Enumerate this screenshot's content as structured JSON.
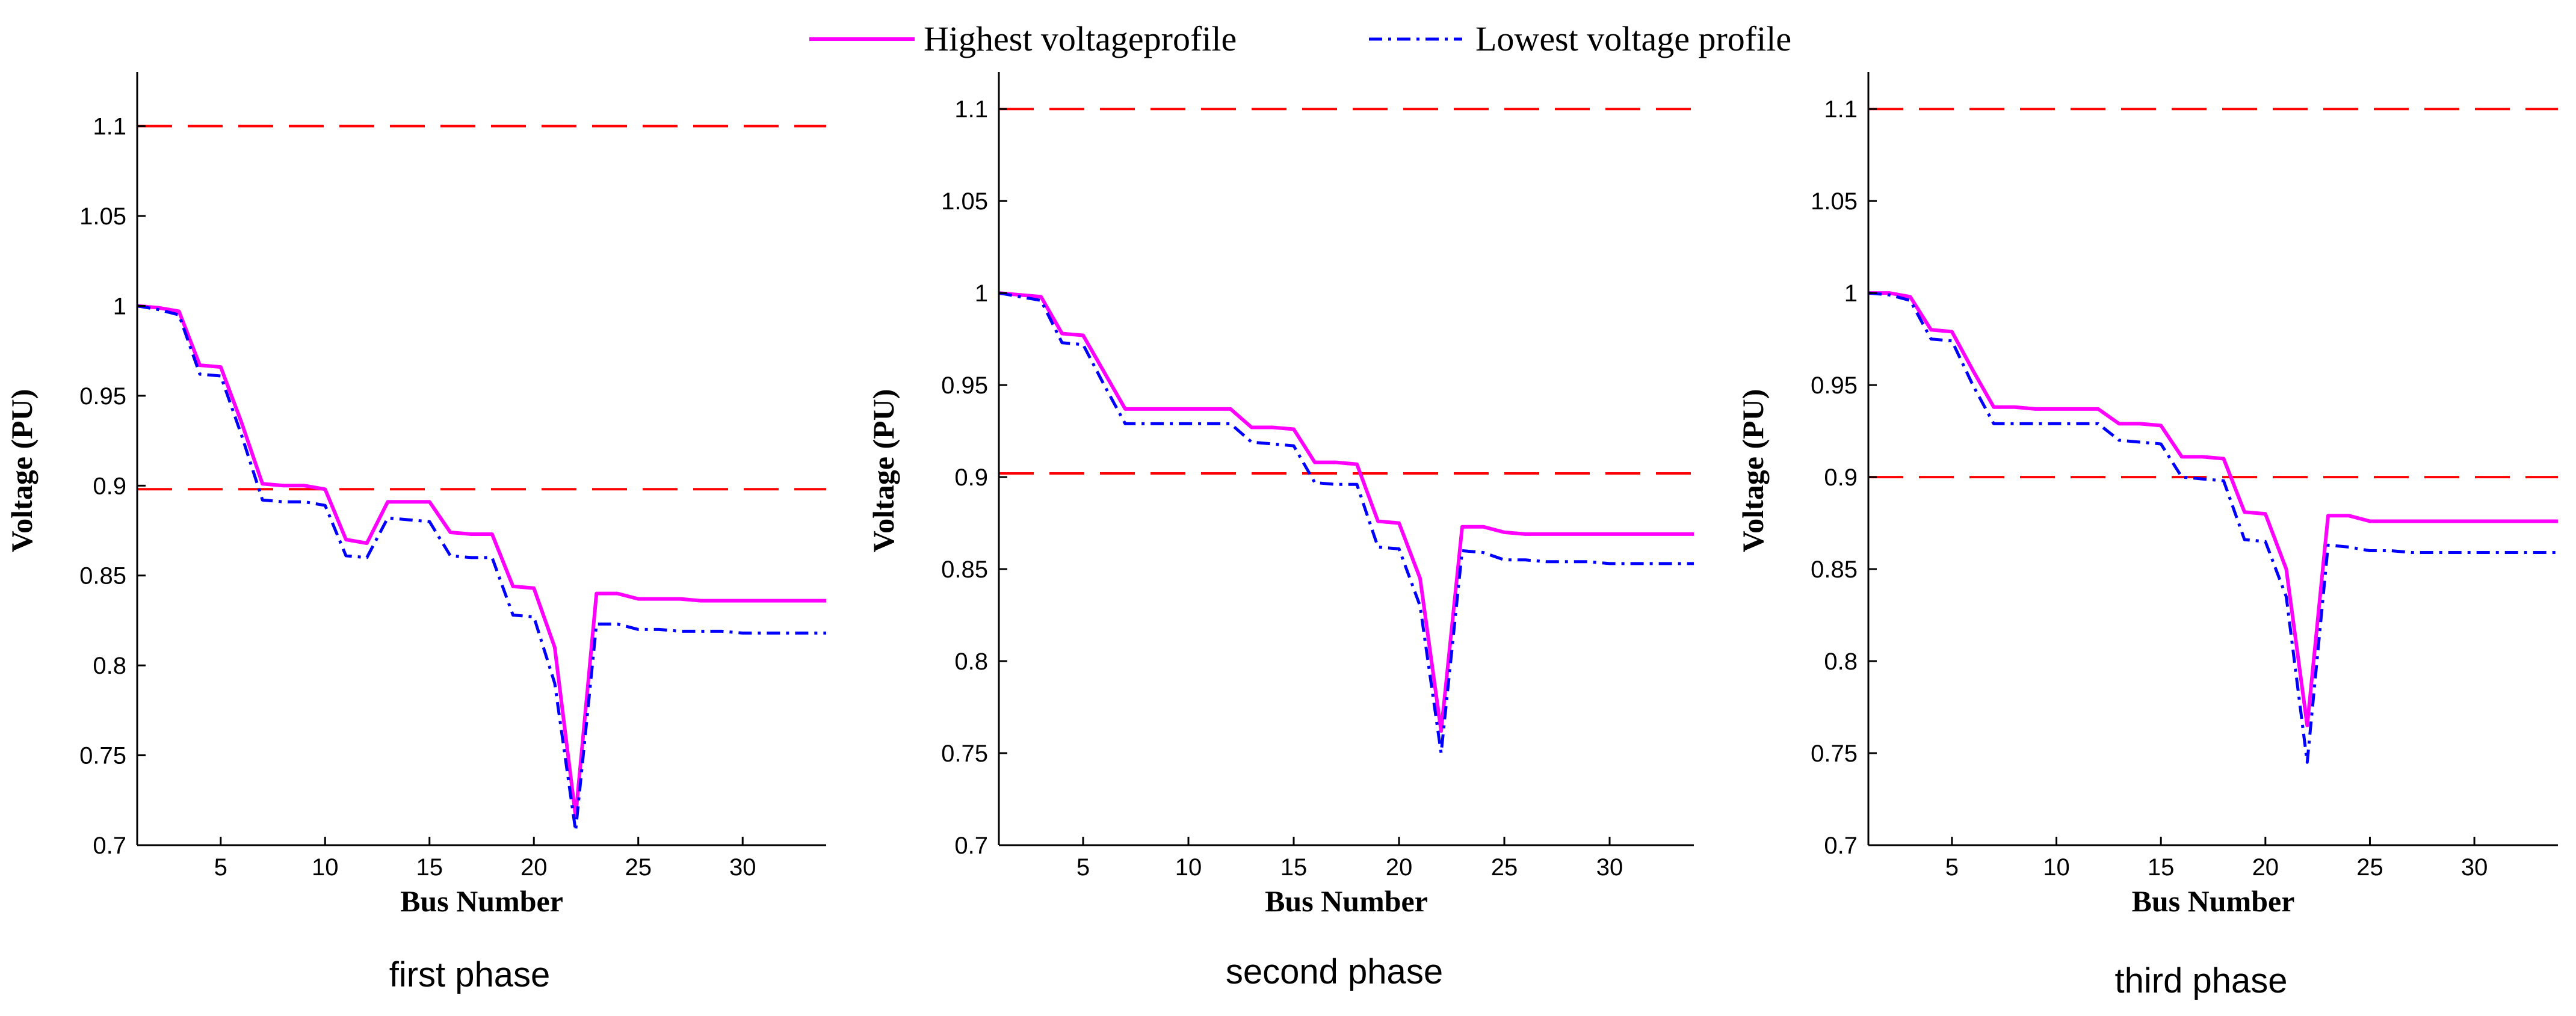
{
  "legend": {
    "items": [
      {
        "label": "Highest voltageprofile",
        "color": "#ff00ff",
        "style": "solid"
      },
      {
        "label": "Lowest voltage profile",
        "color": "#0000ff",
        "style": "dashdot"
      }
    ]
  },
  "chart_data": [
    {
      "type": "line",
      "caption": "first phase",
      "xlabel": "Bus Number",
      "ylabel": "Voltage (PU)",
      "xlim": [
        1,
        34
      ],
      "ylim": [
        0.7,
        1.13
      ],
      "xticks": [
        5,
        10,
        15,
        20,
        25,
        30
      ],
      "yticks": [
        0.7,
        0.75,
        0.8,
        0.85,
        0.9,
        0.95,
        1,
        1.05,
        1.1
      ],
      "ytick_labels": [
        "0.7",
        "0.75",
        "0.8",
        "0.85",
        "0.9",
        "0.95",
        "1",
        "1.05",
        "1.1"
      ],
      "limits": [
        1.1,
        0.898
      ],
      "limit_color": "#ff0000",
      "x": [
        1,
        2,
        3,
        4,
        5,
        6,
        7,
        8,
        9,
        10,
        11,
        12,
        13,
        14,
        15,
        16,
        17,
        18,
        19,
        20,
        21,
        22,
        23,
        24,
        25,
        26,
        27,
        28,
        29,
        30,
        31,
        32,
        33,
        34
      ],
      "series": [
        {
          "name": "Highest voltageprofile",
          "color": "#ff00ff",
          "values": [
            1.0,
            0.999,
            0.997,
            0.967,
            0.966,
            0.935,
            0.901,
            0.9,
            0.9,
            0.898,
            0.87,
            0.868,
            0.891,
            0.891,
            0.891,
            0.874,
            0.873,
            0.873,
            0.844,
            0.843,
            0.81,
            0.716,
            0.84,
            0.84,
            0.837,
            0.837,
            0.837,
            0.836,
            0.836,
            0.836,
            0.836,
            0.836,
            0.836,
            0.836
          ]
        },
        {
          "name": "Lowest voltage profile",
          "color": "#0000ff",
          "values": [
            1.0,
            0.998,
            0.995,
            0.962,
            0.961,
            0.928,
            0.892,
            0.891,
            0.891,
            0.889,
            0.861,
            0.86,
            0.882,
            0.881,
            0.88,
            0.861,
            0.86,
            0.86,
            0.828,
            0.827,
            0.79,
            0.708,
            0.823,
            0.823,
            0.82,
            0.82,
            0.819,
            0.819,
            0.819,
            0.818,
            0.818,
            0.818,
            0.818,
            0.818
          ]
        }
      ]
    },
    {
      "type": "line",
      "caption": "second phase",
      "xlabel": "Bus Number",
      "ylabel": "Voltage (PU)",
      "xlim": [
        1,
        34
      ],
      "ylim": [
        0.7,
        1.12
      ],
      "xticks": [
        5,
        10,
        15,
        20,
        25,
        30
      ],
      "yticks": [
        0.7,
        0.75,
        0.8,
        0.85,
        0.9,
        0.95,
        1,
        1.05,
        1.1
      ],
      "ytick_labels": [
        "0.7",
        "0.75",
        "0.8",
        "0.85",
        "0.9",
        "0.95",
        "1",
        "1.05",
        "1.1"
      ],
      "limits": [
        1.1,
        0.902
      ],
      "limit_color": "#ff0000",
      "x": [
        1,
        2,
        3,
        4,
        5,
        6,
        7,
        8,
        9,
        10,
        11,
        12,
        13,
        14,
        15,
        16,
        17,
        18,
        19,
        20,
        21,
        22,
        23,
        24,
        25,
        26,
        27,
        28,
        29,
        30,
        31,
        32,
        33,
        34
      ],
      "series": [
        {
          "name": "Highest voltageprofile",
          "color": "#ff00ff",
          "values": [
            1.0,
            0.999,
            0.998,
            0.978,
            0.977,
            0.957,
            0.937,
            0.937,
            0.937,
            0.937,
            0.937,
            0.937,
            0.927,
            0.927,
            0.926,
            0.908,
            0.908,
            0.907,
            0.876,
            0.875,
            0.845,
            0.762,
            0.873,
            0.873,
            0.87,
            0.869,
            0.869,
            0.869,
            0.869,
            0.869,
            0.869,
            0.869,
            0.869,
            0.869
          ]
        },
        {
          "name": "Lowest voltage profile",
          "color": "#0000ff",
          "values": [
            1.0,
            0.998,
            0.996,
            0.973,
            0.972,
            0.95,
            0.929,
            0.929,
            0.929,
            0.929,
            0.929,
            0.929,
            0.919,
            0.918,
            0.917,
            0.897,
            0.896,
            0.896,
            0.862,
            0.861,
            0.83,
            0.75,
            0.86,
            0.859,
            0.855,
            0.855,
            0.854,
            0.854,
            0.854,
            0.853,
            0.853,
            0.853,
            0.853,
            0.853
          ]
        }
      ]
    },
    {
      "type": "line",
      "caption": "third phase",
      "xlabel": "Bus Number",
      "ylabel": "Voltage (PU)",
      "xlim": [
        1,
        34
      ],
      "ylim": [
        0.7,
        1.12
      ],
      "xticks": [
        5,
        10,
        15,
        20,
        25,
        30
      ],
      "yticks": [
        0.7,
        0.75,
        0.8,
        0.85,
        0.9,
        0.95,
        1,
        1.05,
        1.1
      ],
      "ytick_labels": [
        "0.7",
        "0.75",
        "0.8",
        "0.85",
        "0.9",
        "0.95",
        "1",
        "1.05",
        "1.1"
      ],
      "limits": [
        1.1,
        0.9
      ],
      "limit_color": "#ff0000",
      "x": [
        1,
        2,
        3,
        4,
        5,
        6,
        7,
        8,
        9,
        10,
        11,
        12,
        13,
        14,
        15,
        16,
        17,
        18,
        19,
        20,
        21,
        22,
        23,
        24,
        25,
        26,
        27,
        28,
        29,
        30,
        31,
        32,
        33,
        34
      ],
      "series": [
        {
          "name": "Highest voltageprofile",
          "color": "#ff00ff",
          "values": [
            1.0,
            1.0,
            0.998,
            0.98,
            0.979,
            0.958,
            0.938,
            0.938,
            0.937,
            0.937,
            0.937,
            0.937,
            0.929,
            0.929,
            0.928,
            0.911,
            0.911,
            0.91,
            0.881,
            0.88,
            0.85,
            0.765,
            0.879,
            0.879,
            0.876,
            0.876,
            0.876,
            0.876,
            0.876,
            0.876,
            0.876,
            0.876,
            0.876,
            0.876
          ]
        },
        {
          "name": "Lowest voltage profile",
          "color": "#0000ff",
          "values": [
            1.0,
            0.999,
            0.996,
            0.975,
            0.974,
            0.95,
            0.929,
            0.929,
            0.929,
            0.929,
            0.929,
            0.929,
            0.92,
            0.919,
            0.918,
            0.9,
            0.899,
            0.898,
            0.866,
            0.865,
            0.835,
            0.745,
            0.863,
            0.862,
            0.86,
            0.86,
            0.859,
            0.859,
            0.859,
            0.859,
            0.859,
            0.859,
            0.859,
            0.859
          ]
        }
      ]
    }
  ]
}
